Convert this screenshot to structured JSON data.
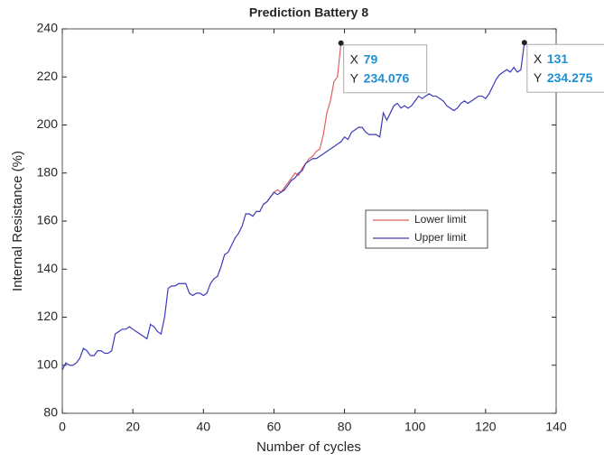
{
  "chart_data": {
    "type": "line",
    "title": "Prediction Battery 8",
    "x_label": "Number of cycles",
    "y_label": "Internal Resistance (%)",
    "xlim": [
      0,
      140
    ],
    "xticks": [
      0,
      20,
      40,
      60,
      80,
      100,
      120,
      140
    ],
    "ylim": [
      80,
      240
    ],
    "yticks": [
      80,
      100,
      120,
      140,
      160,
      180,
      200,
      220,
      240
    ],
    "grid": false,
    "legend": "east",
    "series": [
      {
        "name": "Lower limit",
        "color": "#e06060",
        "x": [
          57,
          58,
          59,
          60,
          61,
          62,
          63,
          64,
          65,
          66,
          67,
          68,
          69,
          70,
          71,
          72,
          73,
          74,
          75,
          76,
          77,
          78,
          79
        ],
        "values": [
          167,
          168,
          170,
          172,
          173,
          172,
          174,
          176,
          178,
          180,
          179,
          182,
          184,
          186,
          187,
          189,
          190,
          196,
          205,
          210,
          218,
          220,
          234.076
        ]
      },
      {
        "name": "Upper limit",
        "color": "#3a3ab8",
        "x": [
          0,
          1,
          2,
          3,
          4,
          5,
          6,
          7,
          8,
          9,
          10,
          11,
          12,
          13,
          14,
          15,
          16,
          17,
          18,
          19,
          20,
          21,
          22,
          23,
          24,
          25,
          26,
          27,
          28,
          29,
          30,
          31,
          32,
          33,
          34,
          35,
          36,
          37,
          38,
          39,
          40,
          41,
          42,
          43,
          44,
          45,
          46,
          47,
          48,
          49,
          50,
          51,
          52,
          53,
          54,
          55,
          56,
          57,
          58,
          59,
          60,
          61,
          62,
          63,
          64,
          65,
          66,
          67,
          68,
          69,
          70,
          71,
          72,
          73,
          74,
          75,
          76,
          77,
          78,
          79,
          80,
          81,
          82,
          83,
          84,
          85,
          86,
          87,
          88,
          89,
          90,
          91,
          92,
          93,
          94,
          95,
          96,
          97,
          98,
          99,
          100,
          101,
          102,
          103,
          104,
          105,
          106,
          107,
          108,
          109,
          110,
          111,
          112,
          113,
          114,
          115,
          116,
          117,
          118,
          119,
          120,
          121,
          122,
          123,
          124,
          125,
          126,
          127,
          128,
          129,
          130,
          131
        ],
        "values": [
          98,
          101,
          100,
          100,
          101,
          103,
          107,
          106,
          104,
          104,
          106,
          106,
          105,
          105,
          106,
          113,
          114,
          115,
          115,
          116,
          115,
          114,
          113,
          112,
          111,
          117,
          116,
          114,
          113,
          120,
          132,
          133,
          133,
          134,
          134,
          134,
          130,
          129,
          130,
          130,
          129,
          130,
          134,
          136,
          137,
          141,
          146,
          147,
          150,
          153,
          155,
          158,
          163,
          163,
          162,
          164,
          164,
          167,
          168,
          170,
          172,
          171,
          172,
          173,
          175,
          177,
          178,
          180,
          181,
          184,
          185,
          186,
          186,
          187,
          188,
          189,
          190,
          191,
          192,
          193,
          195,
          194,
          197,
          198,
          199,
          199,
          197,
          196,
          196,
          196,
          195,
          205,
          202,
          205,
          208,
          209,
          207,
          208,
          207,
          208,
          210,
          212,
          211,
          212,
          213,
          212,
          212,
          211,
          210,
          208,
          207,
          206,
          207,
          209,
          210,
          209,
          210,
          211,
          212,
          212,
          211,
          213,
          216,
          219,
          221,
          222,
          223,
          222,
          224,
          222,
          223,
          234.275
        ]
      }
    ],
    "datatips": [
      {
        "x_label": "X",
        "x": 79,
        "y_label": "Y",
        "y": 234.076
      },
      {
        "x_label": "X",
        "x": 131,
        "y_label": "Y",
        "y": 234.275
      }
    ]
  }
}
